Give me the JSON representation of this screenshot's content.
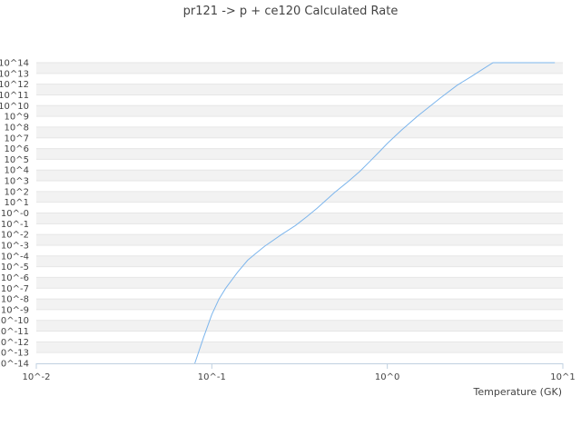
{
  "chart_data": {
    "type": "line",
    "title": "pr121 -> p + ce120 Calculated Rate",
    "xlabel": "Temperature (GK)",
    "ylabel": "",
    "xscale": "log",
    "yscale": "log",
    "xlim": [
      0.01,
      10
    ],
    "ylim": [
      1e-14,
      100000000000000.0
    ],
    "x_ticks": [
      "10^-2",
      "10^-1",
      "10^0",
      "10^1"
    ],
    "y_ticks": [
      "10^-14",
      "10^-13",
      "10^-12",
      "10^-11",
      "10^-10",
      "10^-9",
      "10^-8",
      "10^-7",
      "10^-6",
      "10^-5",
      "10^-4",
      "10^-3",
      "10^-2",
      "10^-1",
      "10^-0",
      "10^1",
      "10^2",
      "10^3",
      "10^4",
      "10^5",
      "10^6",
      "10^7",
      "10^8",
      "10^9",
      "10^10",
      "10^11",
      "10^12",
      "10^13",
      "10^14"
    ],
    "grid": "horizontal alternating bands",
    "legend": "none",
    "colors": {
      "line": "#7cb5ec",
      "band": "#f2f2f2",
      "axis": "#c0d0e0"
    },
    "series": [
      {
        "x": [
          0.08,
          0.09,
          0.1,
          0.11,
          0.12,
          0.14,
          0.16,
          0.18,
          0.2,
          0.25,
          0.3,
          0.35,
          0.4,
          0.5,
          0.6,
          0.7,
          0.8,
          0.9,
          1.0,
          1.2,
          1.5,
          2.0,
          2.5,
          3.0,
          3.5,
          4.0,
          5.0,
          6.0,
          7.0,
          8.0,
          9.0
        ],
        "y": [
          1e-14,
          3e-12,
          3.5e-10,
          1e-08,
          1e-07,
          3e-06,
          4e-05,
          0.0002,
          0.0008,
          0.01,
          0.07,
          0.5,
          3,
          80.0,
          900.0,
          8000.0,
          70000.0,
          500000.0,
          3000000.0,
          50000000.0,
          1200000000.0,
          50000000000.0,
          800000000000.0,
          5000000000000.0,
          25000000000000.0,
          120000000000000.0,
          400000000000000.0,
          750000000000000.0,
          1100000000000000.0,
          1200000000000000.0,
          1000000000000000.0
        ]
      }
    ]
  }
}
